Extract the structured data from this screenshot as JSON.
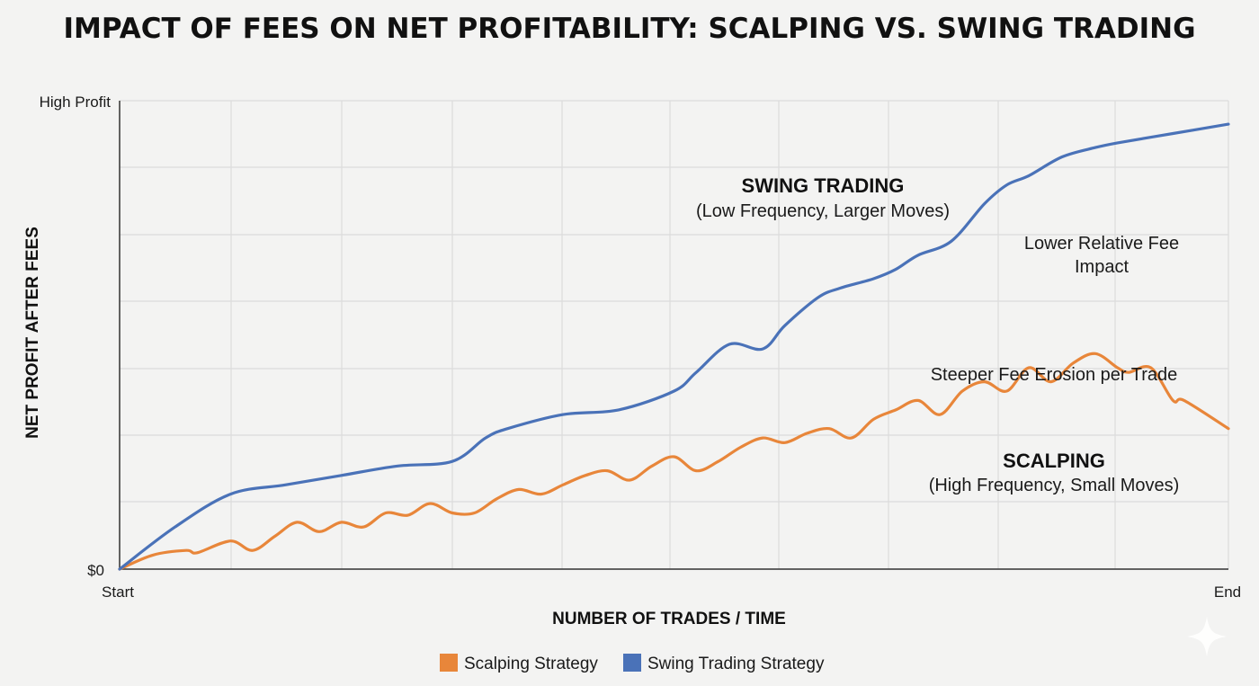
{
  "chart_data": {
    "type": "line",
    "title": "IMPACT OF FEES ON NET PROFITABILITY: SCALPING VS. SWING TRADING",
    "xlabel": "NUMBER OF TRADES / TIME",
    "ylabel": "NET PROFIT AFTER FEES",
    "x_tick_labels": [
      "Start",
      "End"
    ],
    "y_tick_labels": [
      "$0",
      "High Profit"
    ],
    "xlim": [
      0,
      100
    ],
    "ylim": [
      0,
      100
    ],
    "grid": true,
    "legend_position": "bottom-center",
    "series": [
      {
        "name": "Scalping Strategy",
        "color": "#e8863a",
        "x": [
          0,
          3,
          6,
          7,
          10,
          12,
          14,
          16,
          18,
          20,
          22,
          24,
          26,
          28,
          30,
          32,
          34,
          36,
          38,
          40,
          42,
          44,
          46,
          48,
          50,
          52,
          54,
          56,
          58,
          60,
          62,
          64,
          66,
          68,
          70,
          72,
          74,
          76,
          78,
          80,
          82,
          84,
          86,
          88,
          90,
          91,
          93,
          95,
          96,
          100
        ],
        "y": [
          0,
          3,
          4,
          3.5,
          6,
          4,
          7,
          10,
          8,
          10,
          9,
          12,
          11.5,
          14,
          12,
          12,
          15,
          17,
          16,
          18,
          20,
          21,
          19,
          22,
          24,
          21,
          23,
          26,
          28,
          27,
          29,
          30,
          28,
          32,
          34,
          36,
          33,
          38,
          40,
          38,
          43,
          40,
          44,
          46,
          43,
          42,
          43,
          36,
          36,
          30
        ],
        "note_y_at_end": "irregular decline"
      },
      {
        "name": "Swing Trading Strategy",
        "color": "#4a72b8",
        "x": [
          0,
          5,
          10,
          15,
          20,
          25,
          30,
          33,
          35,
          40,
          45,
          50,
          52,
          55,
          58,
          60,
          63,
          65,
          68,
          70,
          72,
          75,
          78,
          80,
          82,
          85,
          88,
          90,
          95,
          100
        ],
        "y": [
          0,
          9,
          16,
          18,
          20,
          22,
          23,
          28,
          30,
          33,
          34,
          38,
          42,
          48,
          47,
          52,
          58,
          60,
          62,
          64,
          67,
          70,
          78,
          82,
          84,
          88,
          90,
          91,
          93,
          95
        ]
      }
    ],
    "annotations": [
      {
        "text": "SWING TRADING",
        "bold": true
      },
      {
        "text": "(Low Frequency, Larger Moves)",
        "bold": false
      },
      {
        "text": "Lower Relative Fee",
        "bold": false
      },
      {
        "text": "Impact",
        "bold": false
      },
      {
        "text": "Steeper Fee Erosion per Trade",
        "bold": false
      },
      {
        "text": "SCALPING",
        "bold": true
      },
      {
        "text": "(High Frequency, Small Moves)",
        "bold": false
      }
    ]
  }
}
